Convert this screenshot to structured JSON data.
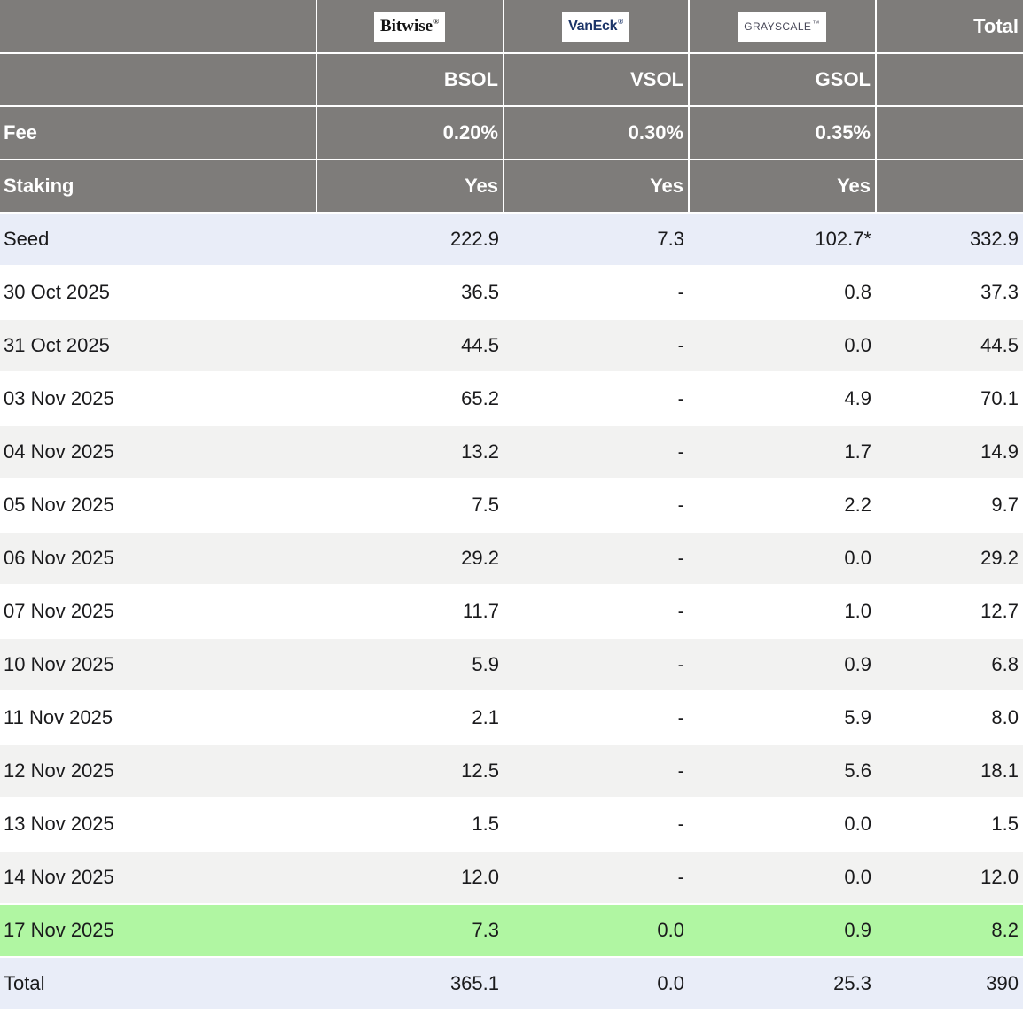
{
  "header": {
    "issuer_logos": [
      {
        "name": "Bitwise",
        "mark": "®"
      },
      {
        "name": "VanEck",
        "mark": "®"
      },
      {
        "name": "GRAYSCALE",
        "mark": "™"
      }
    ],
    "total_label": "Total",
    "tickers": [
      "BSOL",
      "VSOL",
      "GSOL"
    ],
    "fee_row": {
      "label": "Fee",
      "values": [
        "0.20%",
        "0.30%",
        "0.35%"
      ]
    },
    "staking_row": {
      "label": "Staking",
      "values": [
        "Yes",
        "Yes",
        "Yes"
      ]
    }
  },
  "rows": [
    {
      "label": "Seed",
      "bsol": "222.9",
      "vsol": "7.3",
      "gsol": "102.7*",
      "total": "332.9"
    },
    {
      "label": "30 Oct 2025",
      "bsol": "36.5",
      "vsol": "-",
      "gsol": "0.8",
      "total": "37.3"
    },
    {
      "label": "31 Oct 2025",
      "bsol": "44.5",
      "vsol": "-",
      "gsol": "0.0",
      "total": "44.5"
    },
    {
      "label": "03 Nov 2025",
      "bsol": "65.2",
      "vsol": "-",
      "gsol": "4.9",
      "total": "70.1"
    },
    {
      "label": "04 Nov 2025",
      "bsol": "13.2",
      "vsol": "-",
      "gsol": "1.7",
      "total": "14.9"
    },
    {
      "label": "05 Nov 2025",
      "bsol": "7.5",
      "vsol": "-",
      "gsol": "2.2",
      "total": "9.7"
    },
    {
      "label": "06 Nov 2025",
      "bsol": "29.2",
      "vsol": "-",
      "gsol": "0.0",
      "total": "29.2"
    },
    {
      "label": "07 Nov 2025",
      "bsol": "11.7",
      "vsol": "-",
      "gsol": "1.0",
      "total": "12.7"
    },
    {
      "label": "10 Nov 2025",
      "bsol": "5.9",
      "vsol": "-",
      "gsol": "0.9",
      "total": "6.8"
    },
    {
      "label": "11 Nov 2025",
      "bsol": "2.1",
      "vsol": "-",
      "gsol": "5.9",
      "total": "8.0"
    },
    {
      "label": "12 Nov 2025",
      "bsol": "12.5",
      "vsol": "-",
      "gsol": "5.6",
      "total": "18.1"
    },
    {
      "label": "13 Nov 2025",
      "bsol": "1.5",
      "vsol": "-",
      "gsol": "0.0",
      "total": "1.5"
    },
    {
      "label": "14 Nov 2025",
      "bsol": "12.0",
      "vsol": "-",
      "gsol": "0.0",
      "total": "12.0"
    },
    {
      "label": "17 Nov 2025",
      "bsol": "7.3",
      "vsol": "0.0",
      "gsol": "0.9",
      "total": "8.2"
    },
    {
      "label": "Total",
      "bsol": "365.1",
      "vsol": "0.0",
      "gsol": "25.3",
      "total": "390"
    }
  ],
  "colors": {
    "header_bg": "#7e7c7a",
    "header_text": "#ffffff",
    "seed_total_row_bg": "#e9edf8",
    "alt_row_bg": "#f2f2f1",
    "highlight_row_bg": "#b0f6a2",
    "data_text": "#1a1a1c",
    "vaneck_blue": "#1b3468",
    "grayscale_slate": "#474757",
    "bitwise_black": "#141414"
  },
  "chart_data": {
    "type": "table",
    "title": "Solana ETF flows by issuer",
    "columns": [
      "",
      "BSOL",
      "VSOL",
      "GSOL",
      "Total"
    ],
    "issuers": [
      "Bitwise",
      "VanEck",
      "Grayscale"
    ],
    "fees": [
      "0.20%",
      "0.30%",
      "0.35%"
    ],
    "staking": [
      "Yes",
      "Yes",
      "Yes"
    ],
    "rows": [
      [
        "Seed",
        222.9,
        7.3,
        "102.7*",
        332.9
      ],
      [
        "30 Oct 2025",
        36.5,
        "-",
        0.8,
        37.3
      ],
      [
        "31 Oct 2025",
        44.5,
        "-",
        0.0,
        44.5
      ],
      [
        "03 Nov 2025",
        65.2,
        "-",
        4.9,
        70.1
      ],
      [
        "04 Nov 2025",
        13.2,
        "-",
        1.7,
        14.9
      ],
      [
        "05 Nov 2025",
        7.5,
        "-",
        2.2,
        9.7
      ],
      [
        "06 Nov 2025",
        29.2,
        "-",
        0.0,
        29.2
      ],
      [
        "07 Nov 2025",
        11.7,
        "-",
        1.0,
        12.7
      ],
      [
        "10 Nov 2025",
        5.9,
        "-",
        0.9,
        6.8
      ],
      [
        "11 Nov 2025",
        2.1,
        "-",
        5.9,
        8.0
      ],
      [
        "12 Nov 2025",
        12.5,
        "-",
        5.6,
        18.1
      ],
      [
        "13 Nov 2025",
        1.5,
        "-",
        0.0,
        1.5
      ],
      [
        "14 Nov 2025",
        12.0,
        "-",
        0.0,
        12.0
      ],
      [
        "17 Nov 2025",
        7.3,
        0.0,
        0.9,
        8.2
      ],
      [
        "Total",
        365.1,
        0.0,
        25.3,
        390
      ]
    ],
    "highlighted_row": "17 Nov 2025"
  }
}
